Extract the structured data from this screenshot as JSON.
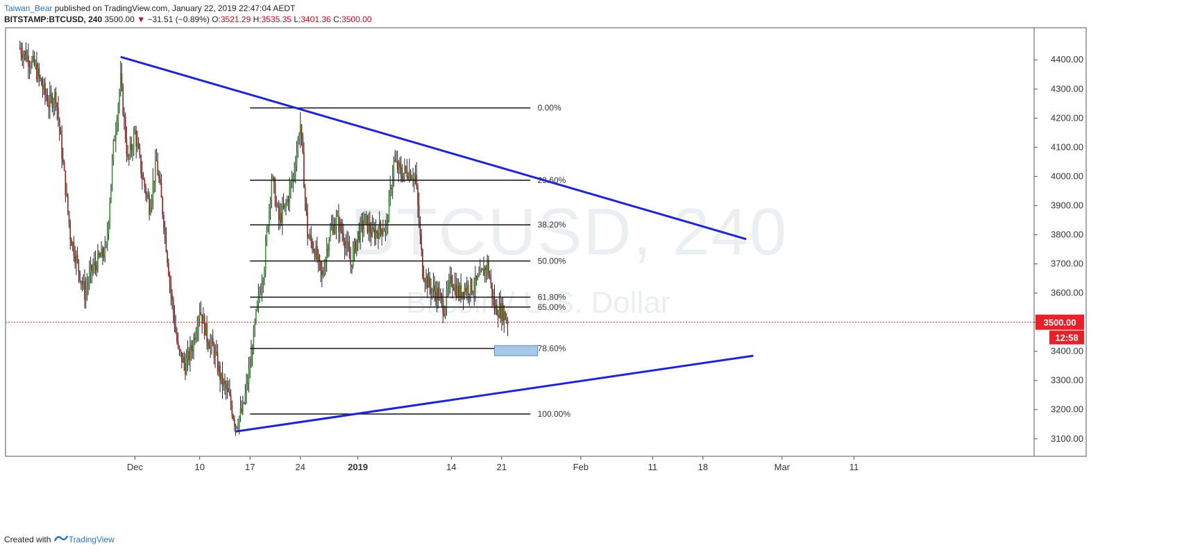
{
  "header": {
    "author": "Taiwan_Bear",
    "published": "published on TradingView.com, January 22, 2019 22:47:04 AEDT",
    "symbol": "BITSTAMP:BTCUSD, 240",
    "last": "3500.00",
    "arrow": "▼",
    "change": "−31.51 (−0.89%)",
    "o_label": "O:",
    "o_val": "3521.29",
    "h_label": "H:",
    "h_val": "3535.35",
    "l_label": "L:",
    "l_val": "3401.36",
    "c_label": "C:",
    "c_val": "3500.00"
  },
  "watermark": {
    "symbol": "BTCUSD, 240",
    "name": "Bitcoin / U.S. Dollar"
  },
  "footer": {
    "created": "Created with",
    "brand": "TradingView"
  },
  "chart_data": {
    "type": "candlestick",
    "y_range": [
      3040,
      4510
    ],
    "y_ticks": [
      "4400.00",
      "4300.00",
      "4200.00",
      "4100.00",
      "4000.00",
      "3900.00",
      "3800.00",
      "3700.00",
      "3600.00",
      "3500.00",
      "3400.00",
      "3300.00",
      "3200.00",
      "3100.00"
    ],
    "x_ticks": [
      {
        "label": "Dec",
        "date": "2018-12-01",
        "bold": false
      },
      {
        "label": "10",
        "date": "2018-12-10",
        "bold": false
      },
      {
        "label": "17",
        "date": "2018-12-17",
        "bold": false
      },
      {
        "label": "24",
        "date": "2018-12-24",
        "bold": false
      },
      {
        "label": "2019",
        "date": "2019-01-01",
        "bold": true
      },
      {
        "label": "14",
        "date": "2019-01-14",
        "bold": false
      },
      {
        "label": "21",
        "date": "2019-01-21",
        "bold": false
      },
      {
        "label": "Feb",
        "date": "2019-02-01",
        "bold": false
      },
      {
        "label": "11",
        "date": "2019-02-11",
        "bold": false
      },
      {
        "label": "18",
        "date": "2019-02-18",
        "bold": false
      },
      {
        "label": "Mar",
        "date": "2019-03-01",
        "bold": false
      },
      {
        "label": "11",
        "date": "2019-03-11",
        "bold": false
      }
    ],
    "price_line": {
      "value": 3500.0,
      "label": "3500.00",
      "countdown": "12:58",
      "color": "#e8202a"
    },
    "fib": {
      "start_date": "2018-12-17",
      "end_date": "2019-01-25",
      "label_date": "2019-01-26",
      "levels": [
        {
          "label": "0.00%",
          "value": 4235
        },
        {
          "label": "23.60%",
          "value": 3987
        },
        {
          "label": "38.20%",
          "value": 3834
        },
        {
          "label": "50.00%",
          "value": 3710
        },
        {
          "label": "61.80%",
          "value": 3586
        },
        {
          "label": "65.00%",
          "value": 3552
        },
        {
          "label": "78.60%",
          "value": 3410
        },
        {
          "label": "100.00%",
          "value": 3185
        }
      ]
    },
    "trendlines": [
      {
        "from": [
          "2018-11-29",
          4410
        ],
        "to": [
          "2019-02-24",
          3785
        ],
        "color": "#1d24d8"
      },
      {
        "from": [
          "2018-12-15",
          3125
        ],
        "to": [
          "2019-02-25",
          3385
        ],
        "color": "#1d24d8"
      }
    ],
    "box": {
      "from": [
        "2019-01-20",
        3420
      ],
      "to": [
        "2019-01-26",
        3385
      ],
      "fill": "#a8c8e8",
      "stroke": "#5a8cc0"
    },
    "colors": {
      "up": "#2e9a2e",
      "down": "#a01818"
    },
    "price_path": [
      [
        "2018-11-15",
        4440
      ],
      [
        "2018-11-17",
        4380
      ],
      [
        "2018-11-19",
        4250
      ],
      [
        "2018-11-20",
        4280
      ],
      [
        "2018-11-22",
        3800
      ],
      [
        "2018-11-24",
        3600
      ],
      [
        "2018-11-25",
        3680
      ],
      [
        "2018-11-27",
        3750
      ],
      [
        "2018-11-28",
        4100
      ],
      [
        "2018-11-29",
        4330
      ],
      [
        "2018-11-30",
        4050
      ],
      [
        "2018-12-01",
        4150
      ],
      [
        "2018-12-02",
        4000
      ],
      [
        "2018-12-03",
        3900
      ],
      [
        "2018-12-04",
        4050
      ],
      [
        "2018-12-05",
        3850
      ],
      [
        "2018-12-06",
        3600
      ],
      [
        "2018-12-07",
        3400
      ],
      [
        "2018-12-08",
        3350
      ],
      [
        "2018-12-09",
        3420
      ],
      [
        "2018-12-10",
        3550
      ],
      [
        "2018-12-11",
        3450
      ],
      [
        "2018-12-12",
        3400
      ],
      [
        "2018-12-13",
        3300
      ],
      [
        "2018-12-14",
        3250
      ],
      [
        "2018-12-15",
        3150
      ],
      [
        "2018-12-16",
        3200
      ],
      [
        "2018-12-17",
        3350
      ],
      [
        "2018-12-18",
        3550
      ],
      [
        "2018-12-19",
        3700
      ],
      [
        "2018-12-20",
        4000
      ],
      [
        "2018-12-21",
        3850
      ],
      [
        "2018-12-22",
        3900
      ],
      [
        "2018-12-23",
        4000
      ],
      [
        "2018-12-24",
        4180
      ],
      [
        "2018-12-25",
        3800
      ],
      [
        "2018-12-26",
        3750
      ],
      [
        "2018-12-27",
        3650
      ],
      [
        "2018-12-28",
        3800
      ],
      [
        "2018-12-29",
        3850
      ],
      [
        "2018-12-30",
        3800
      ],
      [
        "2018-12-31",
        3700
      ],
      [
        "2019-01-01",
        3800
      ],
      [
        "2019-01-02",
        3850
      ],
      [
        "2019-01-03",
        3800
      ],
      [
        "2019-01-04",
        3820
      ],
      [
        "2019-01-05",
        3830
      ],
      [
        "2019-01-06",
        4050
      ],
      [
        "2019-01-07",
        4010
      ],
      [
        "2019-01-08",
        4020
      ],
      [
        "2019-01-09",
        4000
      ],
      [
        "2019-01-10",
        3680
      ],
      [
        "2019-01-11",
        3620
      ],
      [
        "2019-01-12",
        3600
      ],
      [
        "2019-01-13",
        3550
      ],
      [
        "2019-01-14",
        3650
      ],
      [
        "2019-01-15",
        3600
      ],
      [
        "2019-01-16",
        3620
      ],
      [
        "2019-01-17",
        3620
      ],
      [
        "2019-01-18",
        3650
      ],
      [
        "2019-01-19",
        3700
      ],
      [
        "2019-01-20",
        3550
      ],
      [
        "2019-01-21",
        3540
      ],
      [
        "2019-01-22",
        3500
      ]
    ]
  }
}
